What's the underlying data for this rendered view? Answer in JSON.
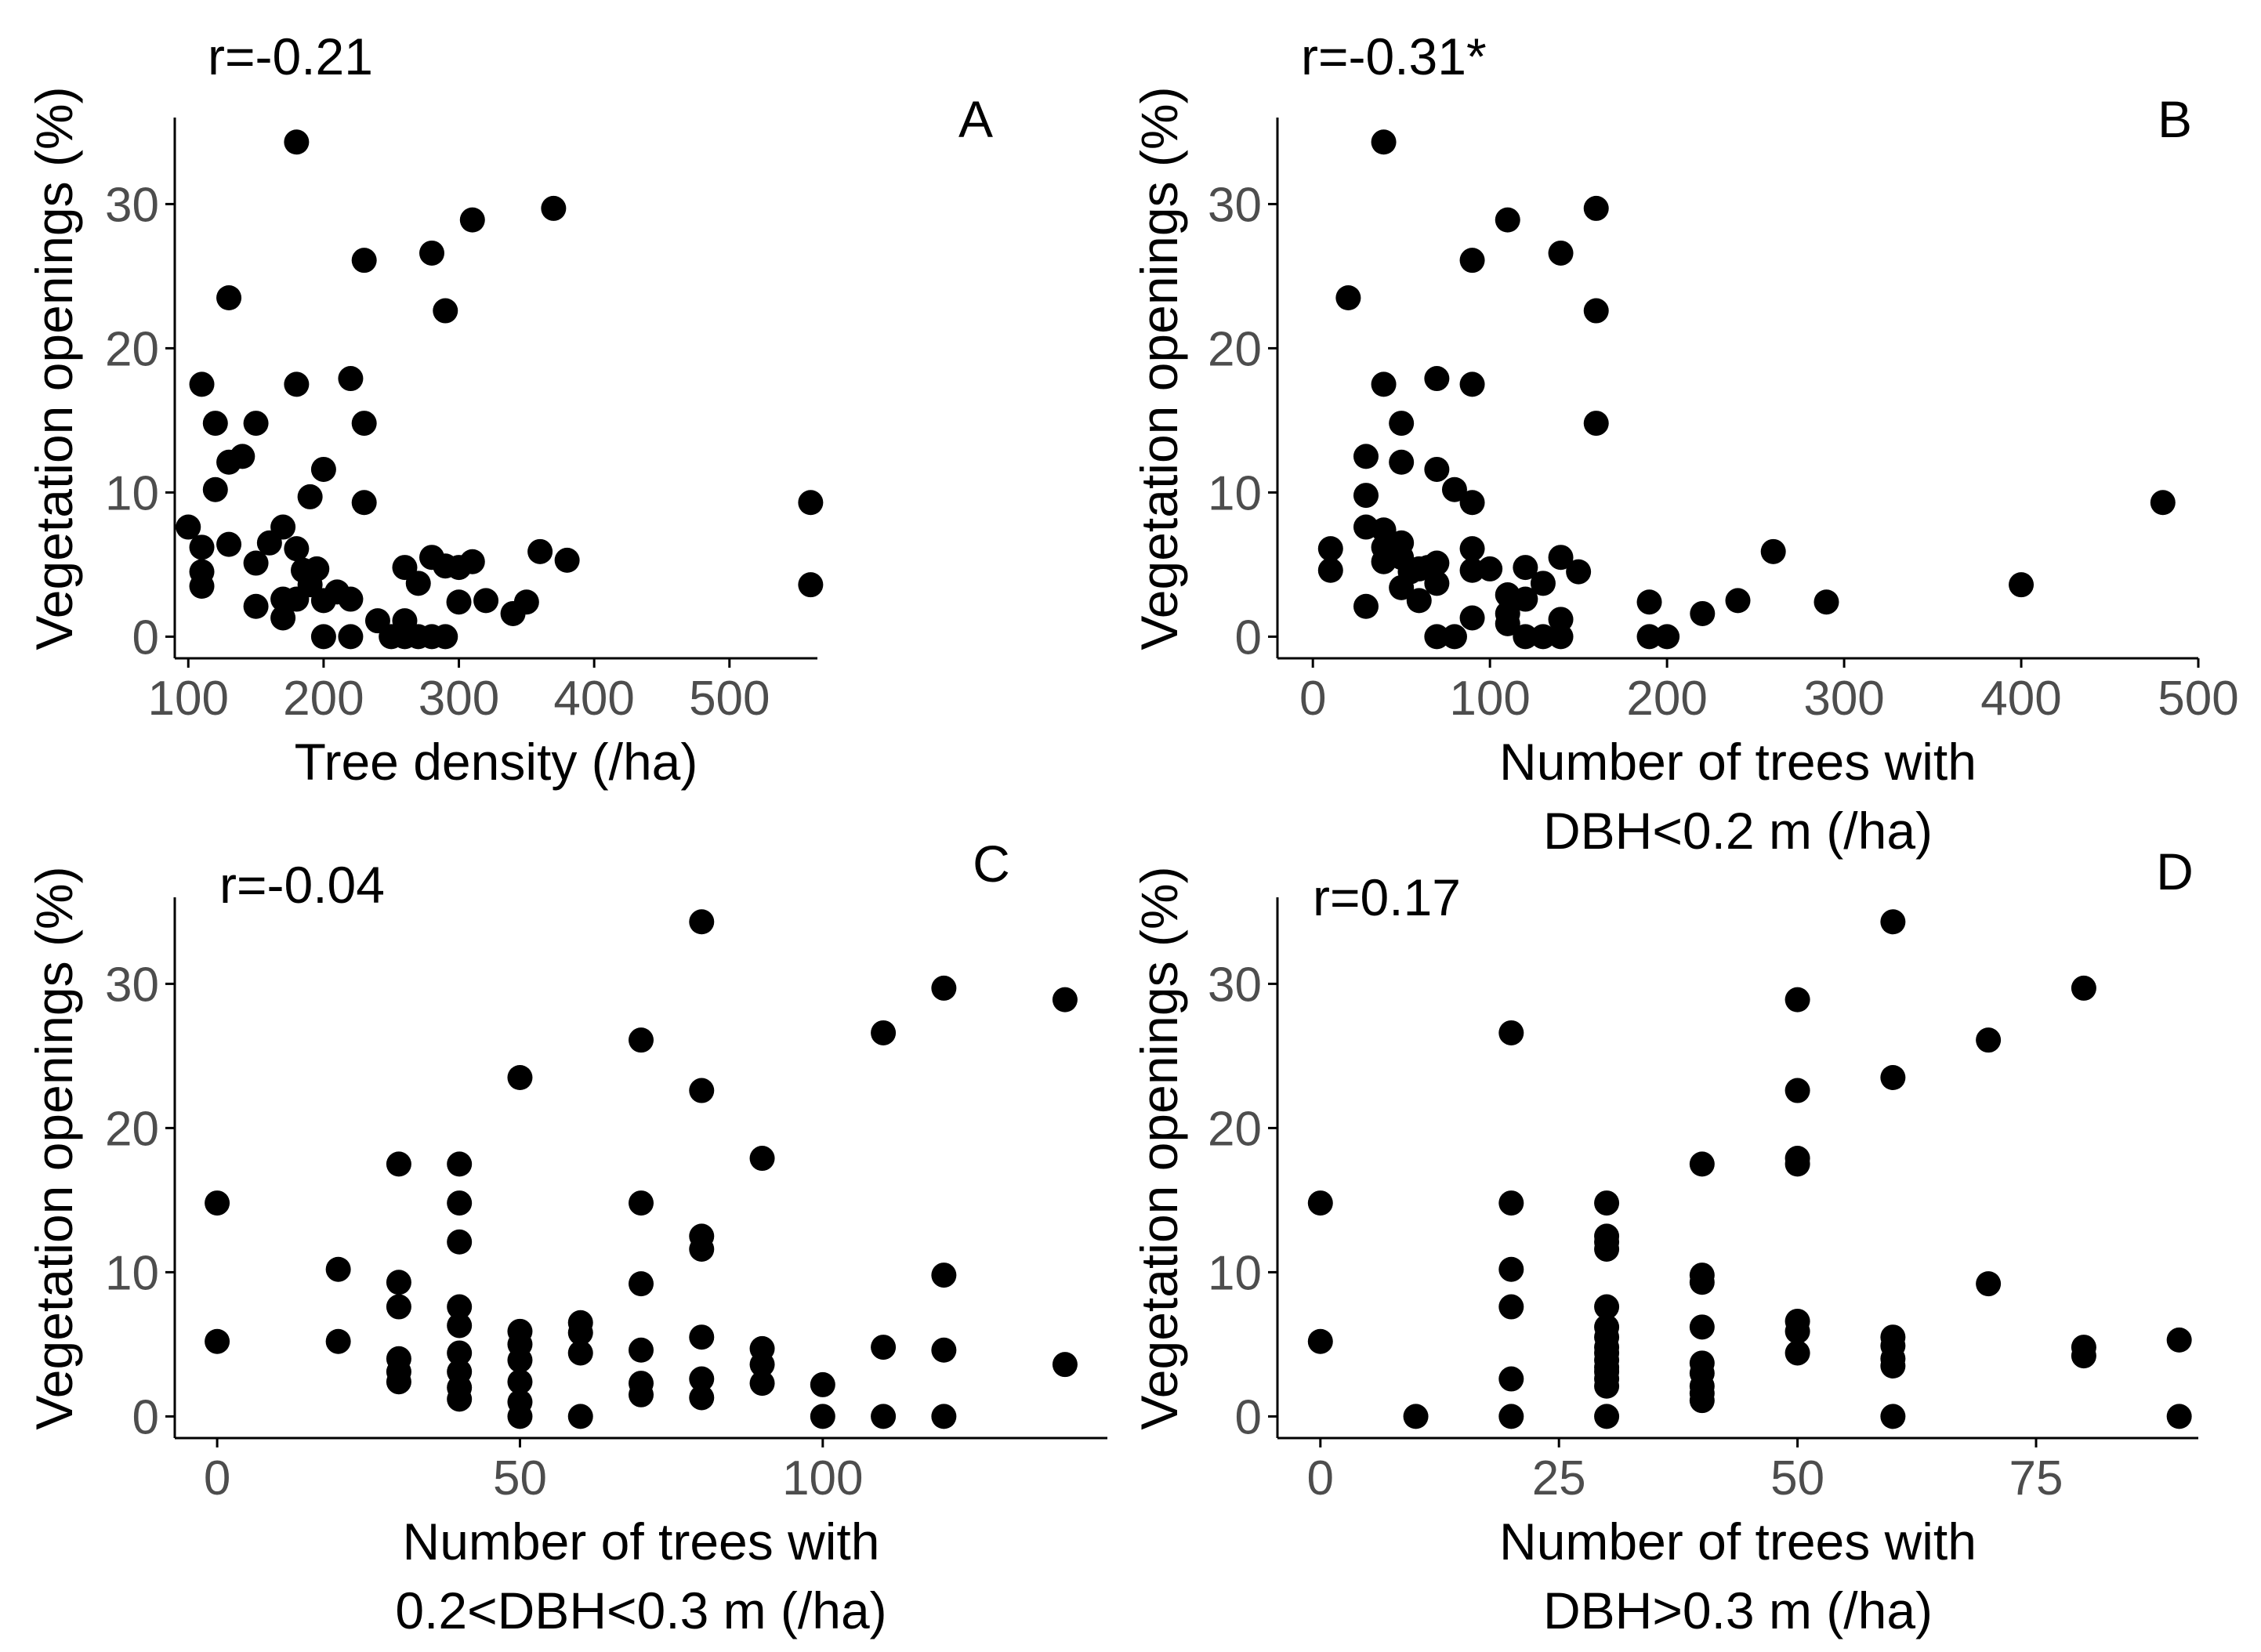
{
  "chart_data": [
    {
      "type": "scatter",
      "panel": "A",
      "annotation": "r=-0.21",
      "xlabel": [
        "Tree density (/ha)"
      ],
      "ylabel": "Vegetation openings (%)",
      "xlim": [
        90,
        565
      ],
      "ylim": [
        -1.5,
        36
      ],
      "xticks": [
        100,
        200,
        300,
        400,
        500
      ],
      "yticks": [
        0,
        10,
        20,
        30
      ],
      "points": [
        [
          100,
          7.6
        ],
        [
          110,
          6.2
        ],
        [
          110,
          4.5
        ],
        [
          110,
          3.5
        ],
        [
          110,
          17.5
        ],
        [
          120,
          14.8
        ],
        [
          120,
          10.2
        ],
        [
          130,
          12.1
        ],
        [
          130,
          6.4
        ],
        [
          130,
          23.5
        ],
        [
          140,
          12.5
        ],
        [
          150,
          14.8
        ],
        [
          150,
          5.1
        ],
        [
          150,
          2.1
        ],
        [
          160,
          6.5
        ],
        [
          170,
          7.6
        ],
        [
          170,
          2.6
        ],
        [
          170,
          1.3
        ],
        [
          180,
          34.3
        ],
        [
          180,
          17.5
        ],
        [
          180,
          6.1
        ],
        [
          180,
          2.6
        ],
        [
          185,
          4.6
        ],
        [
          190,
          3.6
        ],
        [
          190,
          9.7
        ],
        [
          195,
          4.7
        ],
        [
          200,
          11.6
        ],
        [
          200,
          2.5
        ],
        [
          200,
          0
        ],
        [
          210,
          3.1
        ],
        [
          220,
          17.9
        ],
        [
          220,
          2.6
        ],
        [
          220,
          0
        ],
        [
          230,
          26.1
        ],
        [
          230,
          14.8
        ],
        [
          230,
          9.3
        ],
        [
          240,
          1.1
        ],
        [
          250,
          0
        ],
        [
          260,
          4.8
        ],
        [
          260,
          1.1
        ],
        [
          260,
          0
        ],
        [
          270,
          3.7
        ],
        [
          270,
          0
        ],
        [
          280,
          26.6
        ],
        [
          280,
          5.5
        ],
        [
          280,
          0
        ],
        [
          290,
          22.6
        ],
        [
          290,
          4.9
        ],
        [
          290,
          0
        ],
        [
          300,
          4.8
        ],
        [
          300,
          2.4
        ],
        [
          310,
          28.9
        ],
        [
          310,
          5.2
        ],
        [
          320,
          2.5
        ],
        [
          340,
          1.6
        ],
        [
          350,
          2.4
        ],
        [
          360,
          5.9
        ],
        [
          370,
          29.7
        ],
        [
          380,
          5.3
        ],
        [
          560,
          9.3
        ],
        [
          560,
          3.6
        ]
      ]
    },
    {
      "type": "scatter",
      "panel": "B",
      "annotation": "r=-0.31*",
      "xlabel": [
        "Number of trees with",
        "DBH<0.2 m (/ha)"
      ],
      "ylabel": "Vegetation openings (%)",
      "xlim": [
        -20,
        500
      ],
      "ylim": [
        -1.5,
        36
      ],
      "xticks": [
        0,
        100,
        200,
        300,
        400,
        500
      ],
      "yticks": [
        0,
        10,
        20,
        30
      ],
      "points": [
        [
          10,
          6.1
        ],
        [
          10,
          4.6
        ],
        [
          20,
          23.5
        ],
        [
          30,
          12.5
        ],
        [
          30,
          9.8
        ],
        [
          30,
          7.6
        ],
        [
          30,
          2.1
        ],
        [
          40,
          34.3
        ],
        [
          40,
          17.5
        ],
        [
          40,
          7.4
        ],
        [
          40,
          6.2
        ],
        [
          40,
          5.2
        ],
        [
          50,
          14.8
        ],
        [
          50,
          12.1
        ],
        [
          50,
          6.5
        ],
        [
          50,
          5.5
        ],
        [
          50,
          3.4
        ],
        [
          55,
          4.5
        ],
        [
          60,
          2.5
        ],
        [
          60,
          4.7
        ],
        [
          65,
          4.8
        ],
        [
          70,
          17.9
        ],
        [
          70,
          11.6
        ],
        [
          70,
          5.1
        ],
        [
          70,
          3.7
        ],
        [
          70,
          0
        ],
        [
          80,
          10.2
        ],
        [
          80,
          0
        ],
        [
          90,
          26.1
        ],
        [
          90,
          17.5
        ],
        [
          90,
          9.3
        ],
        [
          90,
          6.1
        ],
        [
          90,
          4.6
        ],
        [
          90,
          1.3
        ],
        [
          100,
          4.7
        ],
        [
          110,
          28.9
        ],
        [
          110,
          2.9
        ],
        [
          110,
          1.6
        ],
        [
          110,
          0.9
        ],
        [
          120,
          4.8
        ],
        [
          120,
          2.6
        ],
        [
          120,
          0
        ],
        [
          130,
          3.7
        ],
        [
          130,
          0
        ],
        [
          140,
          26.6
        ],
        [
          140,
          5.5
        ],
        [
          140,
          1.2
        ],
        [
          140,
          0
        ],
        [
          150,
          4.5
        ],
        [
          160,
          29.7
        ],
        [
          160,
          22.6
        ],
        [
          160,
          14.8
        ],
        [
          190,
          2.4
        ],
        [
          190,
          0
        ],
        [
          200,
          0
        ],
        [
          220,
          1.6
        ],
        [
          240,
          2.5
        ],
        [
          260,
          5.9
        ],
        [
          290,
          2.4
        ],
        [
          400,
          3.6
        ],
        [
          480,
          9.3
        ]
      ]
    },
    {
      "type": "scatter",
      "panel": "C",
      "annotation": "r=-0.04",
      "xlabel": [
        "Number of trees with",
        "0.2<DBH<0.3 m (/ha)"
      ],
      "ylabel": "Vegetation openings (%)",
      "xlim": [
        -7,
        147
      ],
      "ylim": [
        -1.5,
        36
      ],
      "xticks": [
        0,
        50,
        100
      ],
      "yticks": [
        0,
        10,
        20,
        30
      ],
      "points": [
        [
          0,
          14.8
        ],
        [
          0,
          5.2
        ],
        [
          20,
          10.2
        ],
        [
          20,
          5.2
        ],
        [
          30,
          17.5
        ],
        [
          30,
          9.3
        ],
        [
          30,
          7.6
        ],
        [
          30,
          4.0
        ],
        [
          30,
          3.1
        ],
        [
          30,
          2.4
        ],
        [
          40,
          17.5
        ],
        [
          40,
          14.8
        ],
        [
          40,
          12.1
        ],
        [
          40,
          7.6
        ],
        [
          40,
          6.3
        ],
        [
          40,
          4.4
        ],
        [
          40,
          3.1
        ],
        [
          40,
          2.0
        ],
        [
          40,
          1.2
        ],
        [
          50,
          23.5
        ],
        [
          50,
          5.9
        ],
        [
          50,
          5.0
        ],
        [
          50,
          3.9
        ],
        [
          50,
          2.4
        ],
        [
          50,
          1.0
        ],
        [
          50,
          0
        ],
        [
          60,
          6.5
        ],
        [
          60,
          5.8
        ],
        [
          60,
          4.4
        ],
        [
          60,
          0
        ],
        [
          70,
          26.1
        ],
        [
          70,
          14.8
        ],
        [
          70,
          9.2
        ],
        [
          70,
          4.6
        ],
        [
          70,
          2.3
        ],
        [
          70,
          1.5
        ],
        [
          80,
          34.3
        ],
        [
          80,
          22.6
        ],
        [
          80,
          12.5
        ],
        [
          80,
          11.6
        ],
        [
          80,
          5.5
        ],
        [
          80,
          2.6
        ],
        [
          80,
          1.3
        ],
        [
          90,
          17.9
        ],
        [
          90,
          4.7
        ],
        [
          90,
          3.6
        ],
        [
          90,
          2.3
        ],
        [
          100,
          2.2
        ],
        [
          100,
          0
        ],
        [
          110,
          26.6
        ],
        [
          110,
          4.8
        ],
        [
          110,
          0
        ],
        [
          120,
          29.7
        ],
        [
          120,
          9.8
        ],
        [
          120,
          4.6
        ],
        [
          120,
          0
        ],
        [
          140,
          28.9
        ],
        [
          140,
          3.6
        ]
      ]
    },
    {
      "type": "scatter",
      "panel": "D",
      "annotation": "r=0.17",
      "xlabel": [
        "Number of trees with",
        "DBH>0.3 m (/ha)"
      ],
      "ylabel": "Vegetation openings (%)",
      "xlim": [
        -4.5,
        92
      ],
      "ylim": [
        -1.5,
        36
      ],
      "xticks": [
        0,
        25,
        50,
        75
      ],
      "yticks": [
        0,
        10,
        20,
        30
      ],
      "points": [
        [
          0,
          14.8
        ],
        [
          0,
          5.2
        ],
        [
          10,
          0
        ],
        [
          20,
          26.6
        ],
        [
          20,
          14.8
        ],
        [
          20,
          10.2
        ],
        [
          20,
          7.6
        ],
        [
          20,
          2.6
        ],
        [
          20,
          0
        ],
        [
          30,
          14.8
        ],
        [
          30,
          12.5
        ],
        [
          30,
          12.1
        ],
        [
          30,
          11.6
        ],
        [
          30,
          7.6
        ],
        [
          30,
          6.2
        ],
        [
          30,
          5.5
        ],
        [
          30,
          4.8
        ],
        [
          30,
          4.4
        ],
        [
          30,
          3.9
        ],
        [
          30,
          3.4
        ],
        [
          30,
          3.1
        ],
        [
          30,
          2.6
        ],
        [
          30,
          2.1
        ],
        [
          30,
          0
        ],
        [
          40,
          17.5
        ],
        [
          40,
          9.8
        ],
        [
          40,
          9.3
        ],
        [
          40,
          6.2
        ],
        [
          40,
          3.7
        ],
        [
          40,
          3.0
        ],
        [
          40,
          2.1
        ],
        [
          40,
          1.6
        ],
        [
          40,
          1.1
        ],
        [
          50,
          28.9
        ],
        [
          50,
          22.6
        ],
        [
          50,
          17.9
        ],
        [
          50,
          17.5
        ],
        [
          50,
          6.6
        ],
        [
          50,
          5.9
        ],
        [
          50,
          4.4
        ],
        [
          60,
          34.3
        ],
        [
          60,
          23.5
        ],
        [
          60,
          5.5
        ],
        [
          60,
          4.9
        ],
        [
          60,
          4.0
        ],
        [
          60,
          3.5
        ],
        [
          60,
          0
        ],
        [
          70,
          26.1
        ],
        [
          70,
          9.2
        ],
        [
          80,
          29.7
        ],
        [
          80,
          4.8
        ],
        [
          80,
          4.2
        ],
        [
          90,
          5.3
        ],
        [
          90,
          0
        ]
      ]
    }
  ]
}
